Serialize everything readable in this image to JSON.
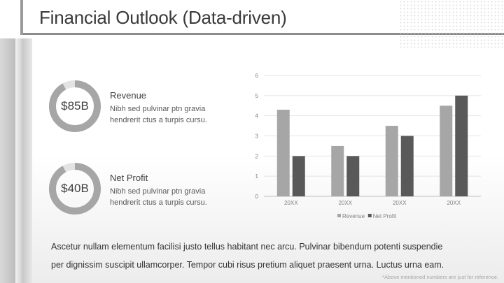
{
  "title": "Financial Outlook (Data-driven)",
  "metrics": [
    {
      "value": "$85B",
      "label": "Revenue",
      "desc_line1": "Nibh sed pulvinar ptn gravia",
      "desc_line2": "hendrerit ctus a turpis cursu.",
      "fill_fraction": 0.92
    },
    {
      "value": "$40B",
      "label": "Net Profit",
      "desc_line1": "Nibh sed pulvinar ptn gravia",
      "desc_line2": "hendrerit ctus a turpis cursu.",
      "fill_fraction": 0.92
    }
  ],
  "body_line1": "Ascetur nullam elementum facilisi justo tellus habitant nec arcu. Pulvinar bibendum potenti suspendie",
  "body_line2": "per dignissim suscipit ullamcorper. Tempor cubi risus pretium aliquet praesent urna. Luctus urna eam.",
  "footnote": "*Above mentioned numbers are just for reference.",
  "colors": {
    "revenue": "#a6a6a6",
    "net_profit": "#595959",
    "donut_fill": "#a6a6a6",
    "donut_track": "#e3e3e3"
  },
  "chart_data": {
    "type": "bar",
    "categories": [
      "20XX",
      "20XX",
      "20XX",
      "20XX"
    ],
    "series": [
      {
        "name": "Revenue",
        "values": [
          4.3,
          2.5,
          3.5,
          4.5
        ]
      },
      {
        "name": "Net Profit",
        "values": [
          2.0,
          2.0,
          3.0,
          5.0
        ]
      }
    ],
    "ylim": [
      0,
      6
    ],
    "yticks": [
      "0",
      "1",
      "2",
      "3",
      "4",
      "5",
      "6"
    ],
    "grid": true,
    "legend": "bottom",
    "title": "",
    "xlabel": "",
    "ylabel": ""
  }
}
